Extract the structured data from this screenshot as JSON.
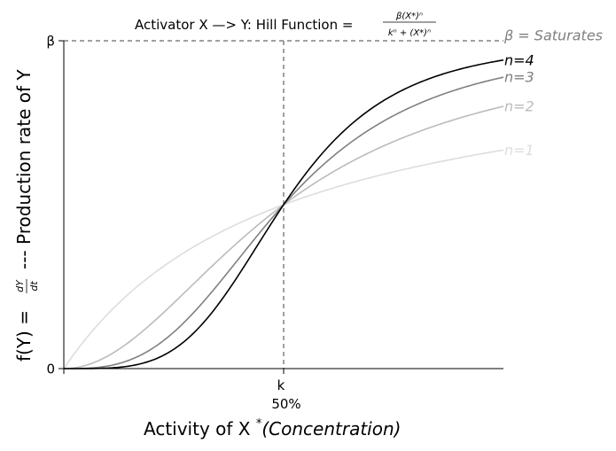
{
  "chart_data": {
    "type": "line",
    "title_main": "Activator X —> Y: Hill Function = ",
    "title_formula": {
      "numerator": "β(X*)ⁿ",
      "denominator": "kⁿ + (X*)ⁿ"
    },
    "ylabel_left": "f(Y) =",
    "ylabel_frac": {
      "numerator": "dY",
      "denominator": "dt"
    },
    "ylabel_right": "--- Production rate of Y",
    "xlabel_text": "Activity of X",
    "xlabel_sup": "*",
    "xlabel_italic": "(Concentration)",
    "x_ticks": [
      {
        "value": 1,
        "label": "k",
        "sublabel": "50%"
      }
    ],
    "y_ticks": [
      {
        "value": 0,
        "label": "0"
      },
      {
        "value": 1,
        "label": "β"
      }
    ],
    "xlim": [
      0,
      2
    ],
    "ylim": [
      0,
      1
    ],
    "k": 1,
    "beta": 1,
    "saturation_label": "β = Saturates",
    "series": [
      {
        "name": "n=1",
        "n": 1,
        "color": "#dddddd"
      },
      {
        "name": "n=2",
        "n": 2,
        "color": "#bbbbbb"
      },
      {
        "name": "n=3",
        "n": 3,
        "color": "#808080"
      },
      {
        "name": "n=4",
        "n": 4,
        "color": "#000000"
      }
    ],
    "reference_lines": [
      {
        "orientation": "horizontal",
        "value": 1,
        "color": "#808080",
        "style": "dashed"
      },
      {
        "orientation": "vertical",
        "value": 1,
        "color": "#808080",
        "style": "dashed"
      }
    ]
  }
}
